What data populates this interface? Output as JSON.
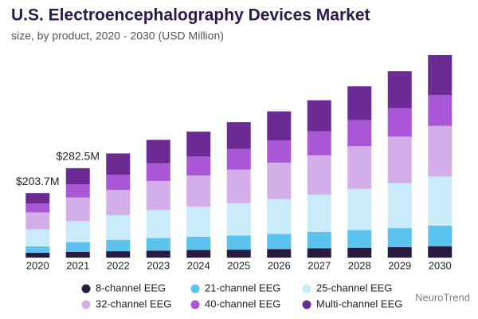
{
  "chart_data": {
    "type": "stacked_bar",
    "title": "U.S. Electroencephalography Devices Market",
    "subtitle": "size, by product, 2020 - 2030 (USD Million)",
    "categories": [
      "2020",
      "2021",
      "2022",
      "2023",
      "2024",
      "2025",
      "2026",
      "2027",
      "2028",
      "2029",
      "2030"
    ],
    "series": [
      {
        "name": "8-channel EEG",
        "color": "#2b1a3f",
        "values": [
          15.3,
          18,
          20,
          22,
          24,
          25,
          27,
          29,
          31,
          33,
          36
        ]
      },
      {
        "name": "21-channel EEG",
        "color": "#5cc3ef",
        "values": [
          20.4,
          30.8,
          36,
          40,
          42,
          45,
          48,
          52,
          56,
          60,
          65
        ]
      },
      {
        "name": "25-channel EEG",
        "color": "#c9ebfa",
        "values": [
          53.5,
          66.8,
          78,
          88,
          95,
          102,
          110,
          118,
          130,
          142,
          155
        ]
      },
      {
        "name": "32-channel EEG",
        "color": "#d4aee8",
        "values": [
          53.5,
          74.5,
          80,
          92,
          98,
          106,
          115,
          124,
          135,
          147,
          160
        ]
      },
      {
        "name": "40-channel EEG",
        "color": "#a957d6",
        "values": [
          28,
          41.1,
          48,
          56,
          60,
          65,
          70,
          76,
          82,
          90,
          98
        ]
      },
      {
        "name": "Multi-channel EEG",
        "color": "#6b2b93",
        "values": [
          33,
          51.3,
          67,
          74,
          79,
          85,
          92,
          98,
          107,
          117,
          126
        ]
      }
    ],
    "annotations": [
      {
        "category": "2020",
        "label": "$203.7M"
      },
      {
        "category": "2021",
        "label": "$282.5M"
      }
    ],
    "ylim": [
      0,
      650
    ],
    "watermark": "NeuroTrend"
  }
}
